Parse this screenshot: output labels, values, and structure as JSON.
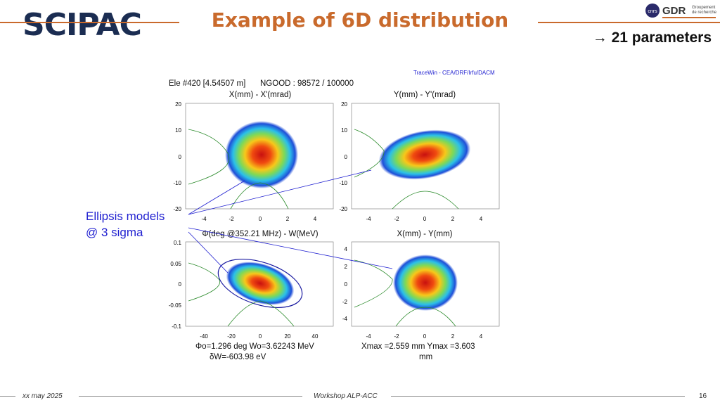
{
  "header": {
    "logo_text": "SCIPAC",
    "title": "Example of 6D distribution",
    "parameters_label": "→ 21 parameters",
    "gdr_logo_text": "GDR",
    "gdr_subtitle_1": "Groupement",
    "gdr_subtitle_2": "de recherche",
    "cnrs_text": "cnrs"
  },
  "figure": {
    "source_label": "TraceWin - CEA/DRF/Irfu/DACM",
    "element_info": "Ele #420 [4.54507 m]",
    "ngood": "NGOOD : 98572 / 100000",
    "plots": [
      {
        "title": "X(mm) - X'(mrad)",
        "y_ticks": [
          "20",
          "10",
          "0",
          "-10",
          "-20"
        ],
        "x_ticks": [
          "-4",
          "-2",
          "0",
          "2",
          "4"
        ]
      },
      {
        "title": "Y(mm) - Y'(mrad)",
        "y_ticks": [
          "20",
          "10",
          "0",
          "-10",
          "-20"
        ],
        "x_ticks": [
          "-4",
          "-2",
          "0",
          "2",
          "4"
        ]
      },
      {
        "title": "Φ(deg @352.21 MHz) - W(MeV)",
        "y_ticks": [
          "0.1",
          "0.05",
          "0",
          "-0.05",
          "-0.1"
        ],
        "x_ticks": [
          "-40",
          "-20",
          "0",
          "20",
          "40"
        ]
      },
      {
        "title": "X(mm) - Y(mm)",
        "y_ticks": [
          "4",
          "2",
          "0",
          "-2",
          "-4"
        ],
        "x_ticks": [
          "-4",
          "-2",
          "0",
          "2",
          "4"
        ]
      }
    ],
    "footer_left_1": "Φo=1.296 deg  Wo=3.62243 MeV",
    "footer_left_2": "δW=-603.98 eV",
    "footer_right_1": "Xmax =2.559 mm  Ymax =3.603",
    "footer_right_2": "mm"
  },
  "annotation": {
    "line1": "Ellipsis models",
    "line2": "@ 3 sigma"
  },
  "footer": {
    "date": "xx may 2025",
    "event": "Workshop ALP-ACC",
    "page": "16"
  }
}
